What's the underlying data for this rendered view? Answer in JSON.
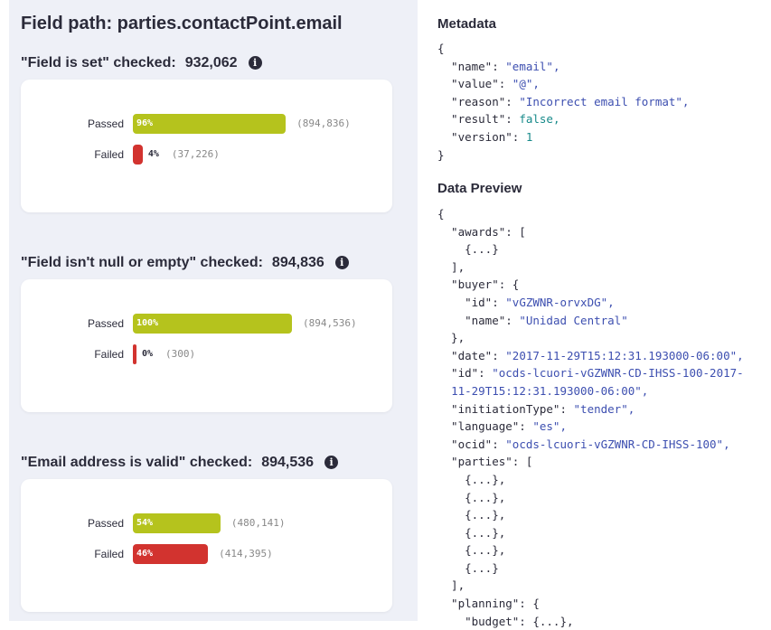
{
  "title": "Field path: parties.contactPoint.email",
  "checks": [
    {
      "heading": "\"Field is set\" checked:",
      "count": "932,062",
      "rows": [
        {
          "label": "Passed",
          "percent": 96,
          "percent_label": "96%",
          "count": "(894,836)"
        },
        {
          "label": "Failed",
          "percent": 4,
          "percent_label": "4%",
          "count": "(37,226)"
        }
      ]
    },
    {
      "heading": "\"Field isn't null or empty\" checked:",
      "count": "894,836",
      "rows": [
        {
          "label": "Passed",
          "percent": 100,
          "percent_label": "100%",
          "count": "(894,536)"
        },
        {
          "label": "Failed",
          "percent": 0,
          "percent_label": "0%",
          "count": "(300)"
        }
      ]
    },
    {
      "heading": "\"Email address is valid\" checked:",
      "count": "894,536",
      "rows": [
        {
          "label": "Passed",
          "percent": 54,
          "percent_label": "54%",
          "count": "(480,141)"
        },
        {
          "label": "Failed",
          "percent": 46,
          "percent_label": "46%",
          "count": "(414,395)"
        }
      ]
    }
  ],
  "colors": {
    "Passed": "#b5c31d",
    "Failed": "#d2332f"
  },
  "metadata": {
    "heading": "Metadata",
    "lines": [
      [
        "{"
      ],
      [
        "  \"name\": ",
        "\"email\","
      ],
      [
        "  \"value\": ",
        "\"@\","
      ],
      [
        "  \"reason\": ",
        "\"Incorrect email format\","
      ],
      [
        "  \"result\": ",
        "false,"
      ],
      [
        "  \"version\": ",
        "1"
      ],
      [
        "}"
      ]
    ]
  },
  "preview": {
    "heading": "Data Preview",
    "lines": [
      [
        "{"
      ],
      [
        "  \"awards\": ["
      ],
      [
        "    {...}"
      ],
      [
        "  ],"
      ],
      [
        "  \"buyer\": {"
      ],
      [
        "    \"id\": ",
        "\"vGZWNR-orvxDG\","
      ],
      [
        "    \"name\": ",
        "\"Unidad Central\""
      ],
      [
        "  },"
      ],
      [
        "  \"date\": ",
        "\"2017-11-29T15:12:31.193000-06:00\","
      ],
      [
        "  \"id\": ",
        "\"ocds-lcuori-vGZWNR-CD-IHSS-100-2017-"
      ],
      [
        "  ",
        "11-29T15:12:31.193000-06:00\","
      ],
      [
        "  \"initiationType\": ",
        "\"tender\","
      ],
      [
        "  \"language\": ",
        "\"es\","
      ],
      [
        "  \"ocid\": ",
        "\"ocds-lcuori-vGZWNR-CD-IHSS-100\","
      ],
      [
        "  \"parties\": ["
      ],
      [
        "    {...},"
      ],
      [
        "    {...},"
      ],
      [
        "    {...},"
      ],
      [
        "    {...},"
      ],
      [
        "    {...},"
      ],
      [
        "    {...}"
      ],
      [
        "  ],"
      ],
      [
        "  \"planning\": {"
      ],
      [
        "    \"budget\": {...},"
      ]
    ]
  }
}
